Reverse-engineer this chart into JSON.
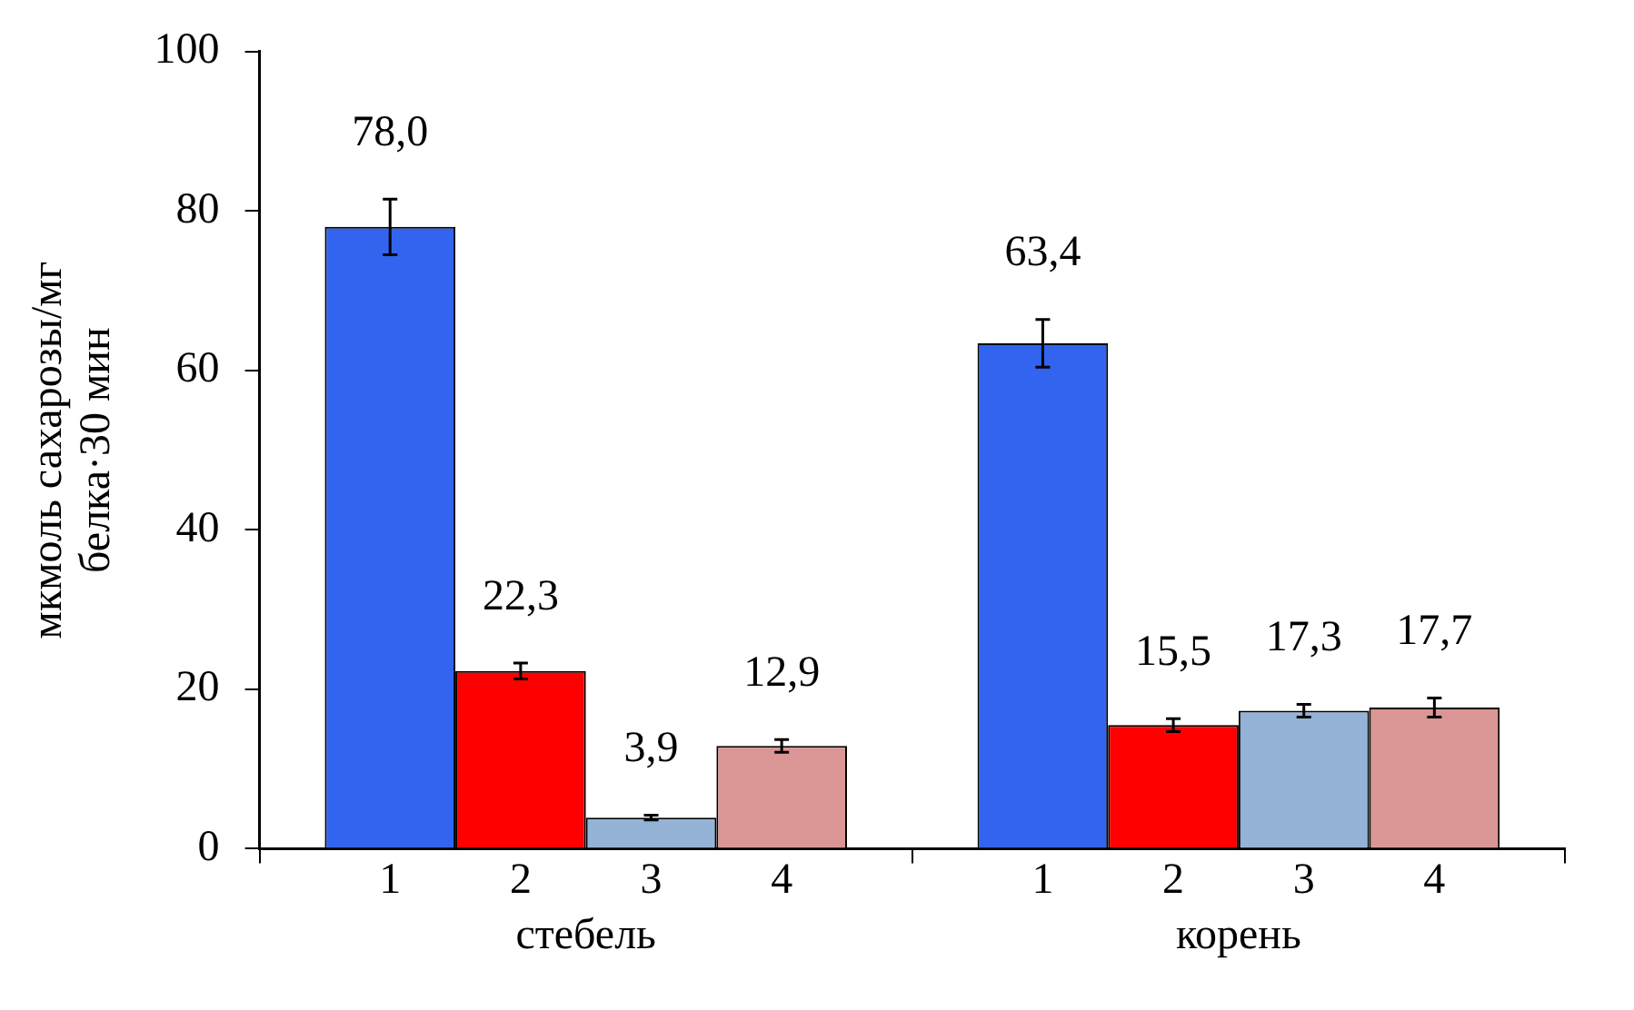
{
  "chart_data": {
    "type": "bar",
    "ylabel": "мкмоль сахарозы/мг\nбелка·30 мин",
    "categories": [
      "стебель",
      "корень"
    ],
    "series": [
      {
        "name": "1",
        "color": "#3264f0",
        "values": [
          78.0,
          63.4
        ],
        "errors": [
          3.5,
          3.0
        ],
        "value_labels": [
          "78,0",
          "63,4"
        ]
      },
      {
        "name": "2",
        "color": "#ff0000",
        "values": [
          22.3,
          15.5
        ],
        "errors": [
          1.0,
          0.8
        ],
        "value_labels": [
          "22,3",
          "15,5"
        ]
      },
      {
        "name": "3",
        "color": "#95b3d7",
        "values": [
          3.9,
          17.3
        ],
        "errors": [
          0.3,
          0.8
        ],
        "value_labels": [
          "3,9",
          "17,3"
        ]
      },
      {
        "name": "4",
        "color": "#d99694",
        "values": [
          12.9,
          17.7
        ],
        "errors": [
          0.8,
          1.2
        ],
        "value_labels": [
          "12,9",
          "17,7"
        ]
      }
    ],
    "ylim": [
      0,
      100
    ],
    "yticks": [
      0,
      20,
      40,
      60,
      80,
      100
    ],
    "grid": false,
    "legend": false
  }
}
